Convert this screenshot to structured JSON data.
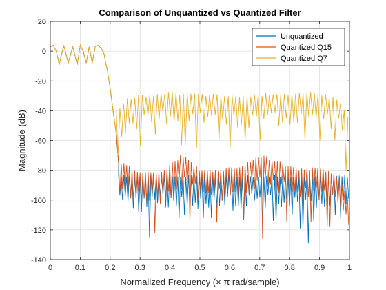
{
  "chart_data": {
    "type": "line",
    "title": "Comparison of Unquantized vs Quantized Filter",
    "xlabel": "Normalized Frequency (× π rad/sample)",
    "ylabel": "Magnitude (dB)",
    "xlim": [
      0,
      1
    ],
    "ylim": [
      -140,
      20
    ],
    "xticks": [
      "0",
      "0.1",
      "0.2",
      "0.3",
      "0.4",
      "0.5",
      "0.6",
      "0.7",
      "0.8",
      "0.9",
      "1"
    ],
    "yticks": [
      "20",
      "0",
      "-20",
      "-40",
      "-60",
      "-80",
      "-100",
      "-120",
      "-140"
    ],
    "grid": true,
    "legend_position": "top-right",
    "passband": {
      "x": [
        0.0,
        0.01,
        0.02,
        0.03,
        0.045,
        0.06,
        0.075,
        0.09,
        0.1,
        0.11,
        0.12,
        0.13,
        0.14,
        0.15,
        0.16,
        0.17,
        0.18,
        0.185,
        0.19,
        0.2,
        0.21,
        0.22,
        0.228
      ],
      "y": [
        3,
        4,
        0,
        -9,
        4,
        -8,
        3,
        -9,
        4,
        0,
        -8,
        3,
        -8,
        3,
        4,
        2,
        -2,
        -8,
        -12,
        -25,
        -40,
        -55,
        -75
      ]
    },
    "series": [
      {
        "name": "Unquantized",
        "color": "#0072bd",
        "stopband_x_range": [
          0.228,
          1.0
        ],
        "peaks": [
          [
            0.228,
            -84
          ],
          [
            1.0,
            -84
          ]
        ],
        "nulls": [
          [
            0.232,
            -97
          ],
          [
            0.3,
            -108
          ],
          [
            0.33,
            -125
          ],
          [
            0.39,
            -105
          ],
          [
            0.43,
            -112
          ],
          [
            0.45,
            -110
          ],
          [
            0.51,
            -112
          ],
          [
            0.54,
            -112
          ],
          [
            0.61,
            -107
          ],
          [
            0.65,
            -113
          ],
          [
            0.71,
            -115
          ],
          [
            0.75,
            -114
          ],
          [
            0.81,
            -110
          ],
          [
            0.84,
            -119
          ],
          [
            0.86,
            -129
          ],
          [
            0.88,
            -114
          ],
          [
            0.95,
            -110
          ],
          [
            0.97,
            -112
          ]
        ]
      },
      {
        "name": "Quantized Q15",
        "color": "#d95319",
        "stopband_x_range": [
          0.228,
          1.0
        ],
        "peaks": [
          [
            0.238,
            -75
          ],
          [
            0.28,
            -80
          ],
          [
            0.33,
            -82
          ],
          [
            0.38,
            -80
          ],
          [
            0.44,
            -70
          ],
          [
            0.5,
            -80
          ],
          [
            0.57,
            -80
          ],
          [
            0.63,
            -78
          ],
          [
            0.7,
            -70
          ],
          [
            0.77,
            -75
          ],
          [
            0.83,
            -80
          ],
          [
            0.9,
            -78
          ],
          [
            0.96,
            -84
          ],
          [
            1.0,
            -100
          ]
        ],
        "nulls": [
          [
            0.23,
            -95
          ],
          [
            0.35,
            -122
          ],
          [
            0.47,
            -115
          ],
          [
            0.56,
            -115
          ],
          [
            0.65,
            -112
          ],
          [
            0.71,
            -126
          ],
          [
            0.79,
            -115
          ],
          [
            0.87,
            -115
          ],
          [
            0.93,
            -118
          ]
        ]
      },
      {
        "name": "Quantized Q7",
        "color": "#edb120",
        "stopband_x_range": [
          0.22,
          1.0
        ],
        "peaks": [
          [
            0.235,
            -38
          ],
          [
            0.26,
            -32
          ],
          [
            0.29,
            -30
          ],
          [
            0.33,
            -30
          ],
          [
            0.4,
            -28
          ],
          [
            0.5,
            -29
          ],
          [
            0.6,
            -30
          ],
          [
            0.68,
            -30
          ],
          [
            0.75,
            -28
          ],
          [
            0.8,
            -29
          ],
          [
            0.88,
            -28
          ],
          [
            0.96,
            -32
          ],
          [
            1.0,
            -45
          ]
        ],
        "nulls": [
          [
            0.225,
            -70
          ],
          [
            0.302,
            -64
          ],
          [
            0.355,
            -56
          ],
          [
            0.445,
            -63
          ],
          [
            0.49,
            -65
          ],
          [
            0.56,
            -60
          ],
          [
            0.6,
            -65
          ],
          [
            0.65,
            -60
          ],
          [
            0.7,
            -60
          ],
          [
            0.85,
            -60
          ],
          [
            0.9,
            -60
          ],
          [
            0.95,
            -60
          ],
          [
            0.99,
            -80
          ]
        ]
      }
    ]
  }
}
